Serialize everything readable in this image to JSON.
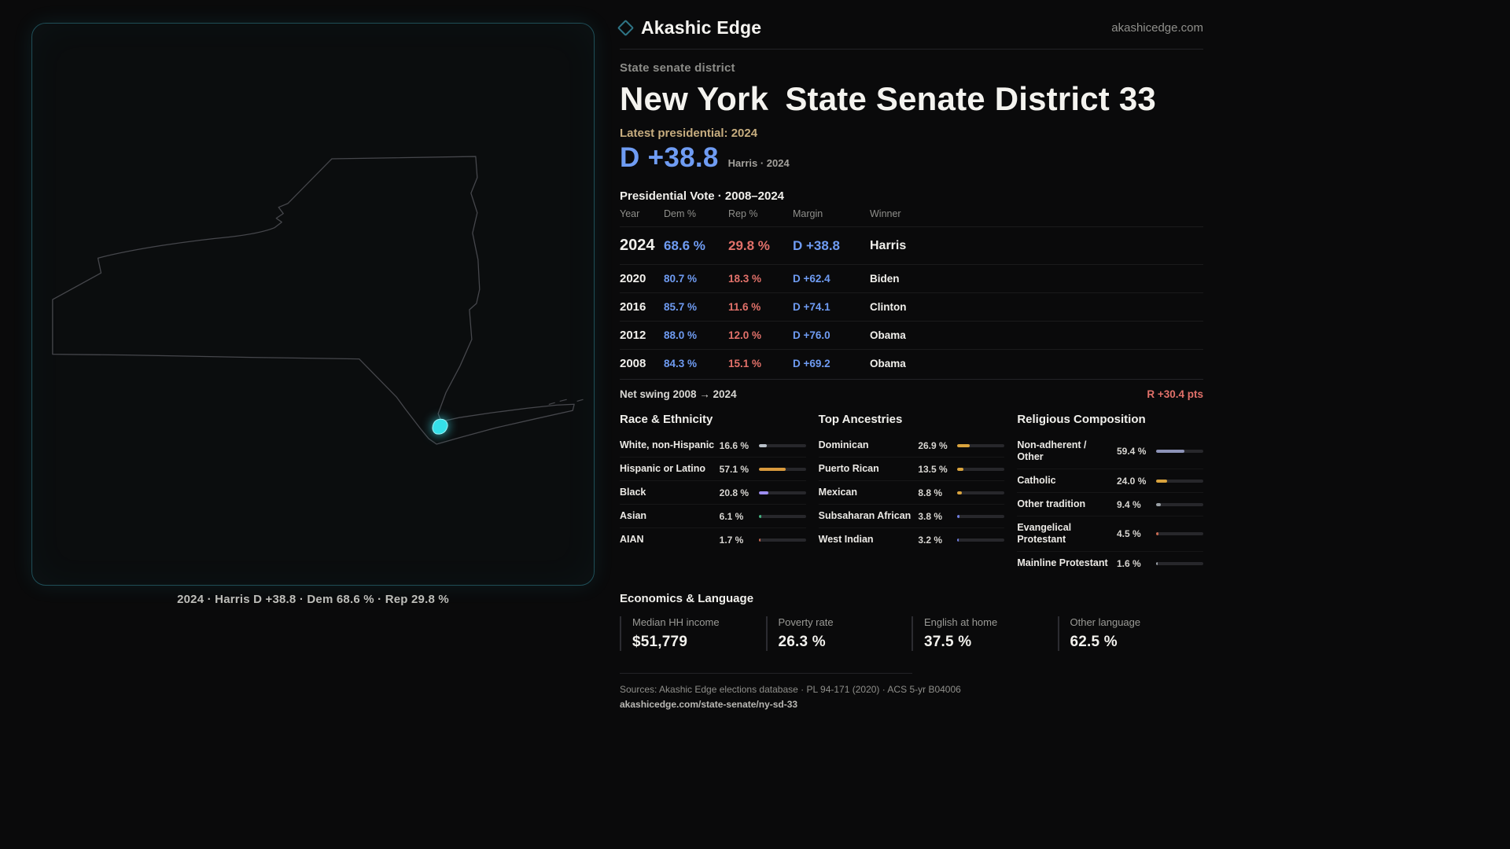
{
  "brand": {
    "name": "Akashic Edge",
    "domain": "akashicedge.com"
  },
  "page": {
    "kicker": "State senate district",
    "title": "New York State Senate District 33",
    "latest_label": "Latest presidential: 2024",
    "headline_margin": "D +38.8",
    "headline_note": "Harris · 2024",
    "table_title": "Presidential Vote · 2008–2024"
  },
  "map": {
    "caption": "2024 · Harris D +38.8 · Dem 68.6 % · Rep 29.8 %",
    "district_color": "#35dfe8"
  },
  "vote_table": {
    "columns": [
      "Year",
      "Dem %",
      "Rep %",
      "Margin",
      "Winner"
    ],
    "rows": [
      {
        "year": "2024",
        "dem": "68.6 %",
        "rep": "29.8 %",
        "margin": "D +38.8",
        "winner": "Harris",
        "highlight": true
      },
      {
        "year": "2020",
        "dem": "80.7 %",
        "rep": "18.3 %",
        "margin": "D +62.4",
        "winner": "Biden",
        "highlight": false
      },
      {
        "year": "2016",
        "dem": "85.7 %",
        "rep": "11.6 %",
        "margin": "D +74.1",
        "winner": "Clinton",
        "highlight": false
      },
      {
        "year": "2012",
        "dem": "88.0 %",
        "rep": "12.0 %",
        "margin": "D +76.0",
        "winner": "Obama",
        "highlight": false
      },
      {
        "year": "2008",
        "dem": "84.3 %",
        "rep": "15.1 %",
        "margin": "D +69.2",
        "winner": "Obama",
        "highlight": false
      }
    ]
  },
  "net_swing": {
    "label": "Net swing 2008 → 2024",
    "value": "R +30.4 pts"
  },
  "demographics": [
    {
      "title": "Race & Ethnicity",
      "items": [
        {
          "label": "White, non-Hispanic",
          "value": "16.6 %",
          "pct": 16.6,
          "color": "#b9c0c9"
        },
        {
          "label": "Hispanic or Latino",
          "value": "57.1 %",
          "pct": 57.1,
          "color": "#d99a3d"
        },
        {
          "label": "Black",
          "value": "20.8 %",
          "pct": 20.8,
          "color": "#9d8df1"
        },
        {
          "label": "Asian",
          "value": "6.1 %",
          "pct": 6.1,
          "color": "#43b581"
        },
        {
          "label": "AIAN",
          "value": "1.7 %",
          "pct": 1.7,
          "color": "#c96a52"
        }
      ]
    },
    {
      "title": "Top Ancestries",
      "items": [
        {
          "label": "Dominican",
          "value": "26.9 %",
          "pct": 26.9,
          "color": "#d9a33d"
        },
        {
          "label": "Puerto Rican",
          "value": "13.5 %",
          "pct": 13.5,
          "color": "#d9a33d"
        },
        {
          "label": "Mexican",
          "value": "8.8 %",
          "pct": 8.8,
          "color": "#d9a33d"
        },
        {
          "label": "Subsaharan African",
          "value": "3.8 %",
          "pct": 3.8,
          "color": "#6f7de0"
        },
        {
          "label": "West Indian",
          "value": "3.2 %",
          "pct": 3.2,
          "color": "#6f7de0"
        }
      ]
    },
    {
      "title": "Religious Composition",
      "items": [
        {
          "label": "Non-adherent / Other",
          "value": "59.4 %",
          "pct": 59.4,
          "color": "#8d93b8"
        },
        {
          "label": "Catholic",
          "value": "24.0 %",
          "pct": 24.0,
          "color": "#d9a33d"
        },
        {
          "label": "Other tradition",
          "value": "9.4 %",
          "pct": 9.4,
          "color": "#9aa0a6"
        },
        {
          "label": "Evangelical Protestant",
          "value": "4.5 %",
          "pct": 4.5,
          "color": "#c96a52"
        },
        {
          "label": "Mainline Protestant",
          "value": "1.6 %",
          "pct": 1.6,
          "color": "#9aa0a6"
        }
      ]
    }
  ],
  "economics": {
    "title": "Economics & Language",
    "stats": [
      {
        "label": "Median HH income",
        "value": "$51,779"
      },
      {
        "label": "Poverty rate",
        "value": "26.3 %"
      },
      {
        "label": "English at home",
        "value": "37.5 %"
      },
      {
        "label": "Other language",
        "value": "62.5 %"
      }
    ]
  },
  "footer": {
    "sources": "Sources: Akashic Edge elections database · PL 94-171 (2020) · ACS 5-yr B04006",
    "permalink": "akashicedge.com/state-senate/ny-sd-33"
  },
  "colors": {
    "dem": "#6f9cf3",
    "rep": "#e2716a",
    "accent": "#35dfe8",
    "gold": "#c7ad7f"
  },
  "chart_data": [
    {
      "type": "table",
      "title": "Presidential Vote · 2008–2024",
      "columns": [
        "Year",
        "Dem %",
        "Rep %",
        "Margin",
        "Winner"
      ],
      "rows": [
        [
          2024,
          68.6,
          29.8,
          "D +38.8",
          "Harris"
        ],
        [
          2020,
          80.7,
          18.3,
          "D +62.4",
          "Biden"
        ],
        [
          2016,
          85.7,
          11.6,
          "D +74.1",
          "Clinton"
        ],
        [
          2012,
          88.0,
          12.0,
          "D +76.0",
          "Obama"
        ],
        [
          2008,
          84.3,
          15.1,
          "D +69.2",
          "Obama"
        ]
      ]
    },
    {
      "type": "bar",
      "title": "Race & Ethnicity",
      "categories": [
        "White, non-Hispanic",
        "Hispanic or Latino",
        "Black",
        "Asian",
        "AIAN"
      ],
      "values": [
        16.6,
        57.1,
        20.8,
        6.1,
        1.7
      ],
      "xlabel": "",
      "ylabel": "%",
      "ylim": [
        0,
        100
      ]
    },
    {
      "type": "bar",
      "title": "Top Ancestries",
      "categories": [
        "Dominican",
        "Puerto Rican",
        "Mexican",
        "Subsaharan African",
        "West Indian"
      ],
      "values": [
        26.9,
        13.5,
        8.8,
        3.8,
        3.2
      ],
      "xlabel": "",
      "ylabel": "%",
      "ylim": [
        0,
        100
      ]
    },
    {
      "type": "bar",
      "title": "Religious Composition",
      "categories": [
        "Non-adherent / Other",
        "Catholic",
        "Other tradition",
        "Evangelical Protestant",
        "Mainline Protestant"
      ],
      "values": [
        59.4,
        24.0,
        9.4,
        4.5,
        1.6
      ],
      "xlabel": "",
      "ylabel": "%",
      "ylim": [
        0,
        100
      ]
    }
  ]
}
